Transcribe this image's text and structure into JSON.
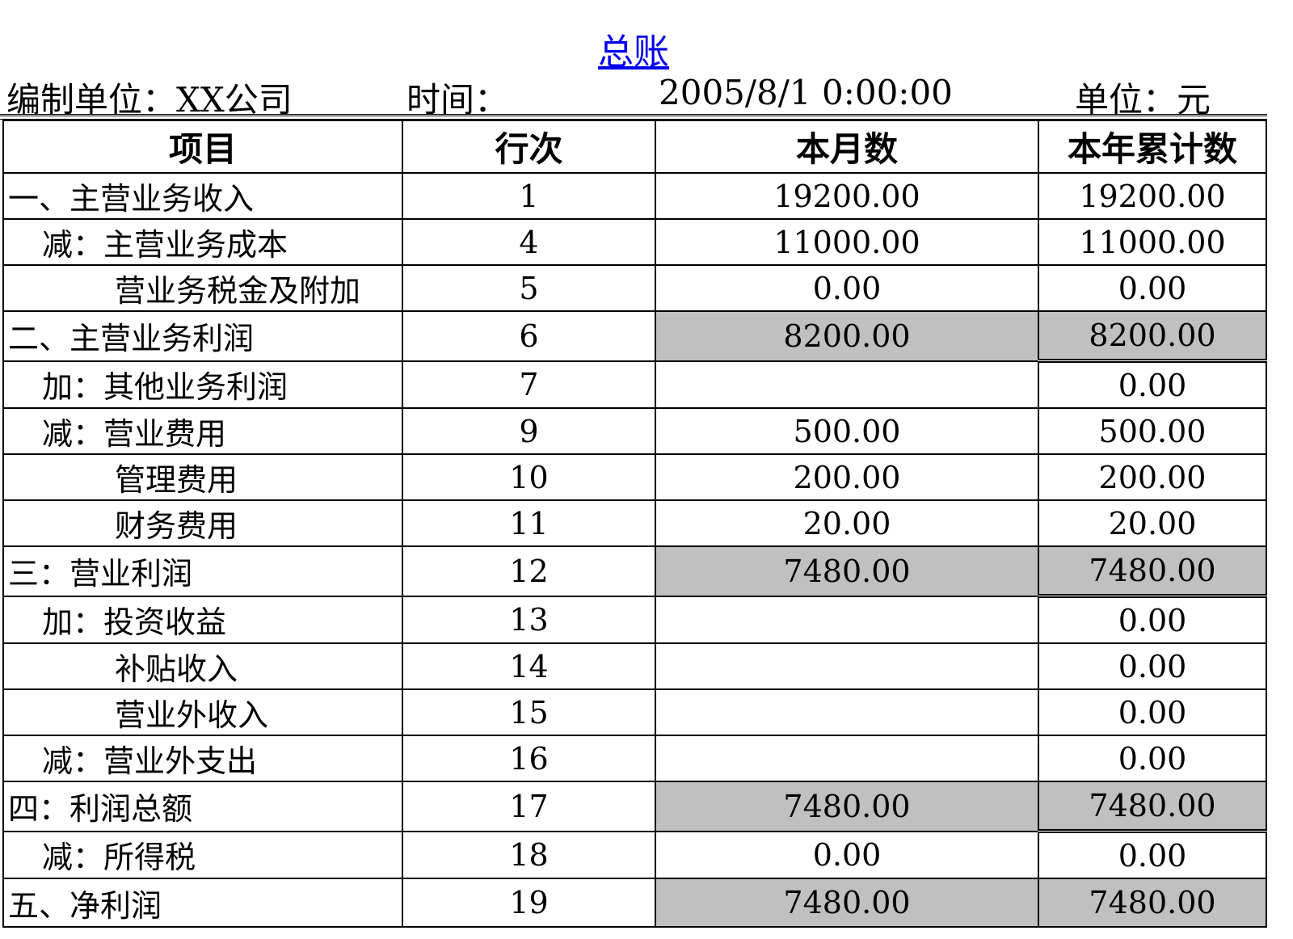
{
  "title": "总账",
  "header": {
    "unit_label": "编制单位：XX公司",
    "time_label": "时间：",
    "time_value": "2005/8/1 0:00:00",
    "currency_label": "单位：元"
  },
  "columns": [
    "项目",
    "行次",
    "本月数",
    "本年累计数"
  ],
  "rows": [
    {
      "item": "一、主营业务收入",
      "level": 0,
      "line": "1",
      "month": "19200.00",
      "ytd": "19200.00",
      "subtotal": false
    },
    {
      "item": "减：主营业务成本",
      "level": 1,
      "line": "4",
      "month": "11000.00",
      "ytd": "11000.00",
      "subtotal": false
    },
    {
      "item": "营业务税金及附加",
      "level": 2,
      "line": "5",
      "month": "0.00",
      "ytd": "0.00",
      "subtotal": false
    },
    {
      "item": "二、主营业务利润",
      "level": 0,
      "line": "6",
      "month": "8200.00",
      "ytd": "8200.00",
      "subtotal": true
    },
    {
      "item": "加：其他业务利润",
      "level": 1,
      "line": "7",
      "month": "",
      "ytd": "0.00",
      "subtotal": false
    },
    {
      "item": "减：营业费用",
      "level": 1,
      "line": "9",
      "month": "500.00",
      "ytd": "500.00",
      "subtotal": false
    },
    {
      "item": "管理费用",
      "level": 2,
      "line": "10",
      "month": "200.00",
      "ytd": "200.00",
      "subtotal": false
    },
    {
      "item": "财务费用",
      "level": 2,
      "line": "11",
      "month": "20.00",
      "ytd": "20.00",
      "subtotal": false
    },
    {
      "item": "三：营业利润",
      "level": 0,
      "line": "12",
      "month": "7480.00",
      "ytd": "7480.00",
      "subtotal": true
    },
    {
      "item": "加：投资收益",
      "level": 1,
      "line": "13",
      "month": "",
      "ytd": "0.00",
      "subtotal": false
    },
    {
      "item": "补贴收入",
      "level": 2,
      "line": "14",
      "month": "",
      "ytd": "0.00",
      "subtotal": false
    },
    {
      "item": "营业外收入",
      "level": 2,
      "line": "15",
      "month": "",
      "ytd": "0.00",
      "subtotal": false
    },
    {
      "item": "减：营业外支出",
      "level": 1,
      "line": "16",
      "month": "",
      "ytd": "0.00",
      "subtotal": false
    },
    {
      "item": "四：利润总额",
      "level": 0,
      "line": "17",
      "month": "7480.00",
      "ytd": "7480.00",
      "subtotal": true
    },
    {
      "item": "减：所得税",
      "level": 1,
      "line": "18",
      "month": "0.00",
      "ytd": "0.00",
      "subtotal": false
    },
    {
      "item": "五、净利润",
      "level": 0,
      "line": "19",
      "month": "7480.00",
      "ytd": "7480.00",
      "subtotal": true
    }
  ],
  "colors": {
    "subtotal_fill": "#c0c0c0",
    "title_link": "#0000ee"
  }
}
